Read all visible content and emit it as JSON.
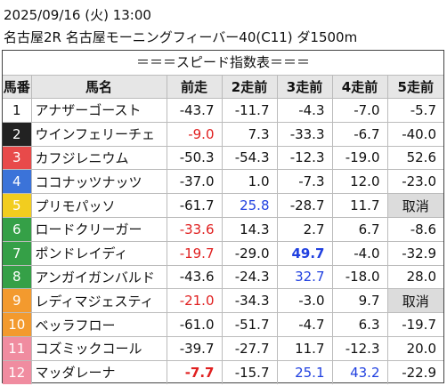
{
  "header": {
    "datetime": "2025/09/16 (火) 13:00",
    "race": "名古屋2R 名古屋モーニングフィーバー40(C11) ダ1500m"
  },
  "table": {
    "title": "＝＝＝スピード指数表＝＝＝",
    "columns": [
      "馬番",
      "馬名",
      "前走",
      "2走前",
      "3走前",
      "4走前",
      "5走前"
    ],
    "rows": [
      {
        "no": "1",
        "frame_color": "#ffffff",
        "name": "アナザーゴースト",
        "cells": [
          {
            "text": "-43.7"
          },
          {
            "text": "-11.7"
          },
          {
            "text": "-4.3"
          },
          {
            "text": "-7.0"
          },
          {
            "text": "-5.7"
          }
        ]
      },
      {
        "no": "2",
        "frame_color": "#222222",
        "name": "ウインフェリーチェ",
        "cells": [
          {
            "text": "-9.0",
            "color": "#e02020"
          },
          {
            "text": "7.3"
          },
          {
            "text": "-33.3"
          },
          {
            "text": "-6.7"
          },
          {
            "text": "-40.0"
          }
        ]
      },
      {
        "no": "3",
        "frame_color": "#e84a4a",
        "name": "カフジレニウム",
        "cells": [
          {
            "text": "-50.3"
          },
          {
            "text": "-54.3"
          },
          {
            "text": "-12.3"
          },
          {
            "text": "-19.0"
          },
          {
            "text": "52.6"
          }
        ]
      },
      {
        "no": "4",
        "frame_color": "#3b73d9",
        "name": "ココナッツナッツ",
        "cells": [
          {
            "text": "-37.0"
          },
          {
            "text": "1.0"
          },
          {
            "text": "-7.3"
          },
          {
            "text": "12.0"
          },
          {
            "text": "-23.0"
          }
        ]
      },
      {
        "no": "5",
        "frame_color": "#f2cd1f",
        "name": "プリモパッソ",
        "cells": [
          {
            "text": "-61.7"
          },
          {
            "text": "25.8",
            "color": "#2040e0"
          },
          {
            "text": "-28.7"
          },
          {
            "text": "11.7"
          },
          {
            "text": "取消",
            "shade": true
          }
        ]
      },
      {
        "no": "6",
        "frame_color": "#35a047",
        "name": "ロードクリーガー",
        "cells": [
          {
            "text": "-33.6",
            "color": "#e02020"
          },
          {
            "text": "14.3"
          },
          {
            "text": "2.7"
          },
          {
            "text": "6.7"
          },
          {
            "text": "-8.6"
          }
        ]
      },
      {
        "no": "7",
        "frame_color": "#35a047",
        "name": "ポンドレイディ",
        "cells": [
          {
            "text": "-19.7",
            "color": "#e02020"
          },
          {
            "text": "-29.0"
          },
          {
            "text": "49.7",
            "color": "#2040e0",
            "bold": true
          },
          {
            "text": "-4.0"
          },
          {
            "text": "-32.9"
          }
        ]
      },
      {
        "no": "8",
        "frame_color": "#35a047",
        "name": "アンガイガンバルド",
        "cells": [
          {
            "text": "-43.6"
          },
          {
            "text": "-24.3"
          },
          {
            "text": "32.7",
            "color": "#2040e0"
          },
          {
            "text": "-18.0"
          },
          {
            "text": "28.0"
          }
        ]
      },
      {
        "no": "9",
        "frame_color": "#f39a2e",
        "name": "レディマジェスティ",
        "cells": [
          {
            "text": "-21.0",
            "color": "#e02020"
          },
          {
            "text": "-34.3"
          },
          {
            "text": "-3.0"
          },
          {
            "text": "9.7"
          },
          {
            "text": "取消",
            "shade": true
          }
        ]
      },
      {
        "no": "10",
        "frame_color": "#f39a2e",
        "name": "ベッラフロー",
        "cells": [
          {
            "text": "-61.0"
          },
          {
            "text": "-51.7"
          },
          {
            "text": "-4.7"
          },
          {
            "text": "6.3"
          },
          {
            "text": "-19.7"
          }
        ]
      },
      {
        "no": "11",
        "frame_color": "#f08ca0",
        "name": "コズミックコール",
        "cells": [
          {
            "text": "-39.7"
          },
          {
            "text": "-27.7"
          },
          {
            "text": "11.7"
          },
          {
            "text": "-12.3"
          },
          {
            "text": "20.0"
          }
        ]
      },
      {
        "no": "12",
        "frame_color": "#f08ca0",
        "name": "マッダレーナ",
        "cells": [
          {
            "text": "-7.7",
            "color": "#e02020",
            "bold": true
          },
          {
            "text": "-15.7"
          },
          {
            "text": "25.1",
            "color": "#2040e0"
          },
          {
            "text": "43.2",
            "color": "#2040e0"
          },
          {
            "text": "-22.9"
          }
        ]
      }
    ]
  }
}
